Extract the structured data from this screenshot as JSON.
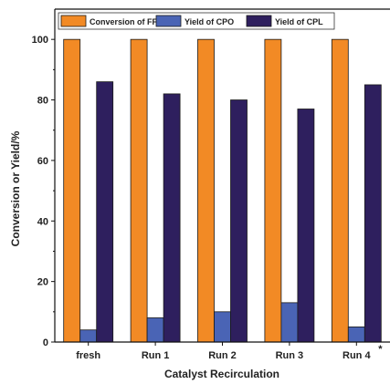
{
  "chart_data": {
    "type": "bar",
    "categories": [
      "fresh",
      "Run 1",
      "Run 2",
      "Run 3",
      "Run 4"
    ],
    "category_annotations": [
      "",
      "",
      "",
      "",
      "*"
    ],
    "series": [
      {
        "name": "Conversion of FFA",
        "color": "#f28a25",
        "values": [
          100,
          100,
          100,
          100,
          100
        ]
      },
      {
        "name": "Yield of CPO",
        "color": "#4a64b5",
        "values": [
          4,
          8,
          10,
          13,
          5
        ]
      },
      {
        "name": "Yield of CPL",
        "color": "#2e1f5e",
        "values": [
          86,
          82,
          80,
          77,
          85
        ]
      }
    ],
    "xlabel": "Catalyst Recirculation",
    "ylabel": "Conversion or Yield/%",
    "ylim": [
      0,
      110
    ],
    "yticks": [
      0,
      20,
      40,
      60,
      80,
      100
    ],
    "legend_position": "top",
    "grid": false
  }
}
